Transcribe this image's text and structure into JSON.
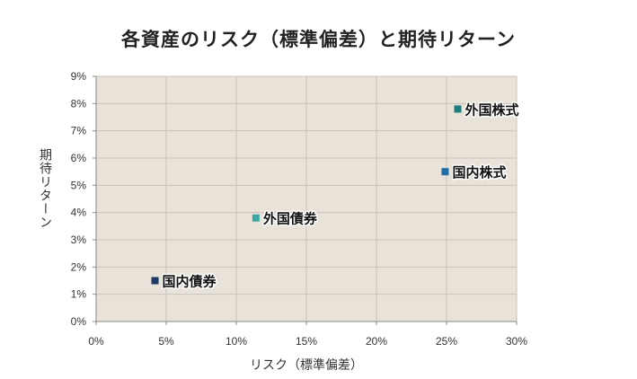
{
  "chart_data": {
    "type": "scatter",
    "title": "各資産のリスク（標準偏差）と期待リターン",
    "xlabel": "リスク（標準偏差）",
    "ylabel": "期待リターン",
    "xlim": [
      0,
      30
    ],
    "ylim": [
      0,
      9
    ],
    "x_ticks": [
      "0%",
      "5%",
      "10%",
      "15%",
      "20%",
      "25%",
      "30%"
    ],
    "y_ticks": [
      "0%",
      "1%",
      "2%",
      "3%",
      "4%",
      "5%",
      "6%",
      "7%",
      "8%",
      "9%"
    ],
    "grid": true,
    "plot_background": "#e8e2d8",
    "points": [
      {
        "label": "国内債券",
        "x": 4.2,
        "y": 1.5,
        "color": "#1c3a63"
      },
      {
        "label": "外国債券",
        "x": 11.4,
        "y": 3.8,
        "color": "#3aa6a6"
      },
      {
        "label": "国内株式",
        "x": 24.9,
        "y": 5.5,
        "color": "#1f6ea8"
      },
      {
        "label": "外国株式",
        "x": 25.8,
        "y": 7.8,
        "color": "#1e7c7c"
      }
    ]
  }
}
